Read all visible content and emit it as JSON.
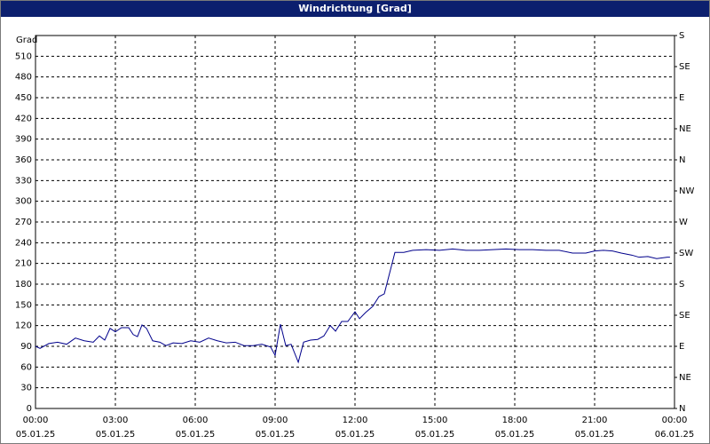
{
  "chart_data": {
    "type": "line",
    "title": "Windrichtung [Grad]",
    "y_label": "Grad",
    "color": "#00008b",
    "x": [
      0,
      0.17,
      0.5,
      0.83,
      1.17,
      1.5,
      1.83,
      2.17,
      2.4,
      2.6,
      2.8,
      3,
      3.23,
      3.5,
      3.67,
      3.83,
      4,
      4.17,
      4.4,
      4.67,
      4.9,
      5.17,
      5.5,
      5.83,
      6.17,
      6.5,
      6.83,
      7.17,
      7.5,
      7.83,
      8.17,
      8.5,
      8.83,
      9,
      9.2,
      9.4,
      9.6,
      9.87,
      10.07,
      10.33,
      10.6,
      10.83,
      11.07,
      11.27,
      11.5,
      11.73,
      12,
      12.17,
      12.4,
      12.67,
      12.9,
      13.1,
      13.5,
      13.83,
      14.17,
      14.67,
      15.17,
      15.67,
      16.17,
      16.67,
      17.17,
      17.67,
      18.17,
      18.67,
      19.17,
      19.67,
      20.17,
      20.67,
      21,
      21.33,
      21.67,
      22,
      22.4,
      22.67,
      23,
      23.33,
      23.73,
      23.83
    ],
    "values": [
      90,
      87,
      94,
      96,
      93,
      102,
      98,
      96,
      105,
      99,
      116,
      111,
      117,
      117,
      107,
      104,
      121,
      116,
      98,
      96,
      91,
      95,
      94,
      98,
      96,
      102,
      98,
      95,
      96,
      91,
      91,
      93,
      89,
      77,
      122,
      91,
      93,
      67,
      96,
      99,
      100,
      105,
      120,
      112,
      126,
      126,
      140,
      130,
      139,
      148,
      162,
      166,
      226,
      226,
      229,
      230,
      229,
      231,
      229,
      229,
      230,
      231,
      230,
      230,
      229,
      229,
      225,
      225,
      228,
      229,
      228,
      225,
      222,
      219,
      220,
      217,
      219,
      219
    ],
    "xlim": [
      0,
      24
    ],
    "xticks": [
      {
        "value": 0,
        "label": "00:00"
      },
      {
        "value": 3,
        "label": "03:00"
      },
      {
        "value": 6,
        "label": "06:00"
      },
      {
        "value": 9,
        "label": "09:00"
      },
      {
        "value": 12,
        "label": "12:00"
      },
      {
        "value": 15,
        "label": "15:00"
      },
      {
        "value": 18,
        "label": "18:00"
      },
      {
        "value": 21,
        "label": "21:00"
      },
      {
        "value": 24,
        "label": "00:00"
      }
    ],
    "xtick_dates": [
      "05.01.25",
      "05.01.25",
      "05.01.25",
      "05.01.25",
      "05.01.25",
      "05.01.25",
      "05.01.25",
      "05.01.25",
      "06.01.25"
    ],
    "ylim": [
      0,
      540
    ],
    "yticks": [
      0,
      30,
      60,
      90,
      120,
      150,
      180,
      210,
      240,
      270,
      300,
      330,
      360,
      390,
      420,
      450,
      480,
      510
    ],
    "y2lim": [
      0,
      540
    ],
    "y2ticks": [
      {
        "value": 0,
        "label": "N"
      },
      {
        "value": 45,
        "label": "NE"
      },
      {
        "value": 90,
        "label": "E"
      },
      {
        "value": 135,
        "label": "SE"
      },
      {
        "value": 180,
        "label": "S"
      },
      {
        "value": 225,
        "label": "SW"
      },
      {
        "value": 270,
        "label": "W"
      },
      {
        "value": 315,
        "label": "NW"
      },
      {
        "value": 360,
        "label": "N"
      },
      {
        "value": 405,
        "label": "NE"
      },
      {
        "value": 450,
        "label": "E"
      },
      {
        "value": 495,
        "label": "SE"
      },
      {
        "value": 540,
        "label": "S"
      }
    ],
    "grid": true
  }
}
